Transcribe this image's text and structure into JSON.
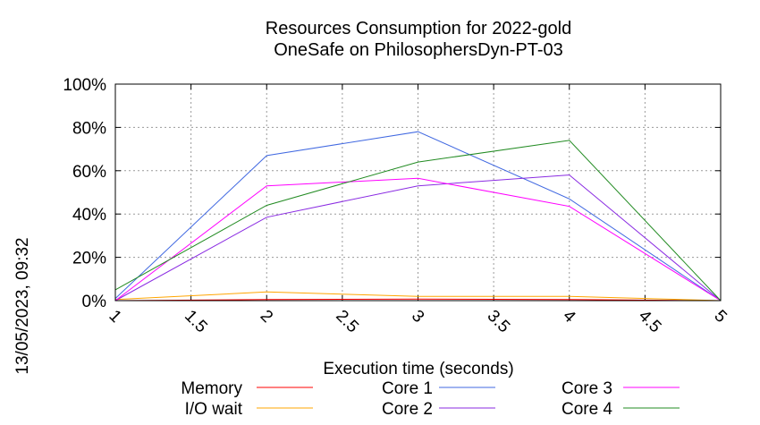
{
  "chart_data": {
    "type": "line",
    "title": "Resources Consumption for 2022-gold",
    "subtitle": "OneSafe on PhilosophersDyn-PT-03",
    "xlabel": "Execution time (seconds)",
    "ylabel": "",
    "side_label": "13/05/2023, 09:32",
    "x": [
      1,
      2,
      3,
      4,
      5
    ],
    "xlim": [
      1,
      5
    ],
    "ylim": [
      0,
      100
    ],
    "x_ticks": [
      "1",
      "1.5",
      "2",
      "2.5",
      "3",
      "3.5",
      "4",
      "4.5",
      "5"
    ],
    "y_ticks": [
      "0%",
      "20%",
      "40%",
      "60%",
      "80%",
      "100%"
    ],
    "grid": true,
    "legend_position": "bottom",
    "series": [
      {
        "name": "Memory",
        "color": "#ff0000",
        "values": [
          0,
          0.5,
          0.7,
          0.5,
          0
        ]
      },
      {
        "name": "I/O wait",
        "color": "#ffa500",
        "values": [
          0.5,
          4,
          2,
          2,
          0
        ]
      },
      {
        "name": "Core 1",
        "color": "#4169e1",
        "values": [
          1,
          67,
          78,
          47,
          0
        ]
      },
      {
        "name": "Core 2",
        "color": "#8a2be2",
        "values": [
          0,
          38.5,
          53,
          58,
          0
        ]
      },
      {
        "name": "Core 3",
        "color": "#ff00ff",
        "values": [
          0,
          53,
          56.5,
          43.5,
          0
        ]
      },
      {
        "name": "Core 4",
        "color": "#228b22",
        "values": [
          5,
          44,
          64,
          74,
          0
        ]
      }
    ]
  }
}
